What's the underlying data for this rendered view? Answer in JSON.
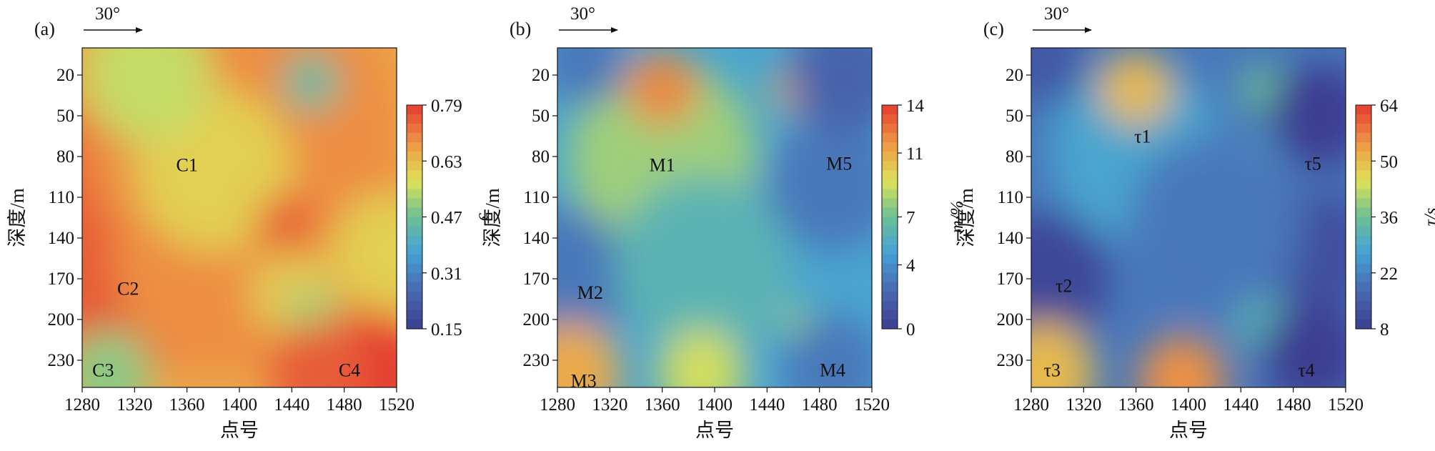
{
  "chart_data": [
    {
      "type": "heatmap",
      "panel_label": "(a)",
      "direction_label": "30°",
      "xlabel": "点号",
      "ylabel": "深度/m",
      "x_ticks": [
        1280,
        1320,
        1360,
        1400,
        1440,
        1480,
        1520
      ],
      "y_ticks": [
        20,
        50,
        80,
        110,
        140,
        170,
        200,
        230
      ],
      "xlim": [
        1280,
        1520
      ],
      "ylim": [
        250,
        0
      ],
      "colorbar": {
        "label": "c",
        "ticks": [
          0.79,
          0.63,
          0.47,
          0.31,
          0.15
        ],
        "range": [
          0.15,
          0.79
        ]
      },
      "zones": [
        {
          "label": "C1",
          "x": 1360,
          "y": 86
        },
        {
          "label": "C2",
          "x": 1315,
          "y": 177
        },
        {
          "label": "C3",
          "x": 1296,
          "y": 237
        },
        {
          "label": "C4",
          "x": 1484,
          "y": 237
        }
      ],
      "field": [
        {
          "x": 1280,
          "y": 110,
          "value": 0.74,
          "r": 60
        },
        {
          "x": 1310,
          "y": 165,
          "value": 0.75,
          "r": 65
        },
        {
          "x": 1340,
          "y": 190,
          "value": 0.78,
          "r": 40
        },
        {
          "x": 1400,
          "y": 60,
          "value": 0.69,
          "r": 110
        },
        {
          "x": 1440,
          "y": 140,
          "value": 0.69,
          "r": 90
        },
        {
          "x": 1380,
          "y": 160,
          "value": 0.69,
          "r": 70
        },
        {
          "x": 1380,
          "y": 90,
          "value": 0.6,
          "r": 55
        },
        {
          "x": 1440,
          "y": 180,
          "value": 0.61,
          "r": 30
        },
        {
          "x": 1455,
          "y": 195,
          "value": 0.52,
          "r": 18
        },
        {
          "x": 1330,
          "y": 20,
          "value": 0.55,
          "r": 45
        },
        {
          "x": 1455,
          "y": 25,
          "value": 0.45,
          "r": 20
        },
        {
          "x": 1300,
          "y": 240,
          "value": 0.5,
          "r": 30
        },
        {
          "x": 1500,
          "y": 240,
          "value": 0.79,
          "r": 40
        },
        {
          "x": 1460,
          "y": 240,
          "value": 0.75,
          "r": 35
        },
        {
          "x": 1515,
          "y": 150,
          "value": 0.6,
          "r": 40
        },
        {
          "x": 1435,
          "y": 130,
          "value": 0.75,
          "r": 20
        }
      ]
    },
    {
      "type": "heatmap",
      "panel_label": "(b)",
      "direction_label": "30°",
      "xlabel": "点号",
      "ylabel": "深度/m",
      "x_ticks": [
        1280,
        1320,
        1360,
        1400,
        1440,
        1480,
        1520
      ],
      "y_ticks": [
        20,
        50,
        80,
        110,
        140,
        170,
        200,
        230
      ],
      "xlim": [
        1280,
        1520
      ],
      "ylim": [
        250,
        0
      ],
      "colorbar": {
        "label": "m/%",
        "ticks": [
          14,
          11,
          7,
          4,
          0
        ],
        "range": [
          0,
          14
        ]
      },
      "zones": [
        {
          "label": "M1",
          "x": 1360,
          "y": 86
        },
        {
          "label": "M2",
          "x": 1305,
          "y": 180
        },
        {
          "label": "M3",
          "x": 1300,
          "y": 245
        },
        {
          "label": "M4",
          "x": 1490,
          "y": 237
        },
        {
          "label": "M5",
          "x": 1495,
          "y": 85
        }
      ],
      "field": [
        {
          "x": 1360,
          "y": 80,
          "value": 8,
          "r": 65
        },
        {
          "x": 1360,
          "y": 30,
          "value": 12,
          "r": 25
        },
        {
          "x": 1460,
          "y": 30,
          "value": 11,
          "r": 15
        },
        {
          "x": 1490,
          "y": 100,
          "value": 3,
          "r": 45
        },
        {
          "x": 1280,
          "y": 170,
          "value": 3,
          "r": 50
        },
        {
          "x": 1390,
          "y": 160,
          "value": 6,
          "r": 60
        },
        {
          "x": 1290,
          "y": 240,
          "value": 11,
          "r": 35
        },
        {
          "x": 1390,
          "y": 240,
          "value": 9,
          "r": 30
        },
        {
          "x": 1490,
          "y": 235,
          "value": 3,
          "r": 35
        },
        {
          "x": 1460,
          "y": 200,
          "value": 8,
          "r": 10
        },
        {
          "x": 1500,
          "y": 20,
          "value": 2,
          "r": 40
        },
        {
          "x": 1300,
          "y": 10,
          "value": 3,
          "r": 30
        }
      ]
    },
    {
      "type": "heatmap",
      "panel_label": "(c)",
      "direction_label": "30°",
      "xlabel": "点号",
      "ylabel": "深度/m",
      "x_ticks": [
        1280,
        1320,
        1360,
        1400,
        1440,
        1480,
        1520
      ],
      "y_ticks": [
        20,
        50,
        80,
        110,
        140,
        170,
        200,
        230
      ],
      "xlim": [
        1280,
        1520
      ],
      "ylim": [
        250,
        0
      ],
      "colorbar": {
        "label": "τ/s",
        "ticks": [
          64,
          50,
          36,
          22,
          8
        ],
        "range": [
          8,
          64
        ]
      },
      "zones": [
        {
          "label": "τ1",
          "x": 1365,
          "y": 65
        },
        {
          "label": "τ2",
          "x": 1305,
          "y": 175
        },
        {
          "label": "τ3",
          "x": 1296,
          "y": 237
        },
        {
          "label": "τ4",
          "x": 1490,
          "y": 237
        },
        {
          "label": "τ5",
          "x": 1495,
          "y": 85
        }
      ],
      "field": [
        {
          "x": 1360,
          "y": 75,
          "value": 28,
          "r": 60
        },
        {
          "x": 1360,
          "y": 30,
          "value": 50,
          "r": 25
        },
        {
          "x": 1455,
          "y": 30,
          "value": 36,
          "r": 15
        },
        {
          "x": 1455,
          "y": 75,
          "value": 30,
          "r": 10
        },
        {
          "x": 1500,
          "y": 50,
          "value": 8,
          "r": 35
        },
        {
          "x": 1500,
          "y": 150,
          "value": 12,
          "r": 40
        },
        {
          "x": 1290,
          "y": 170,
          "value": 10,
          "r": 45
        },
        {
          "x": 1290,
          "y": 240,
          "value": 50,
          "r": 35
        },
        {
          "x": 1395,
          "y": 245,
          "value": 55,
          "r": 30
        },
        {
          "x": 1455,
          "y": 200,
          "value": 32,
          "r": 20
        },
        {
          "x": 1495,
          "y": 225,
          "value": 8,
          "r": 35
        },
        {
          "x": 1420,
          "y": 130,
          "value": 20,
          "r": 60
        },
        {
          "x": 1290,
          "y": 10,
          "value": 14,
          "r": 30
        }
      ]
    }
  ]
}
